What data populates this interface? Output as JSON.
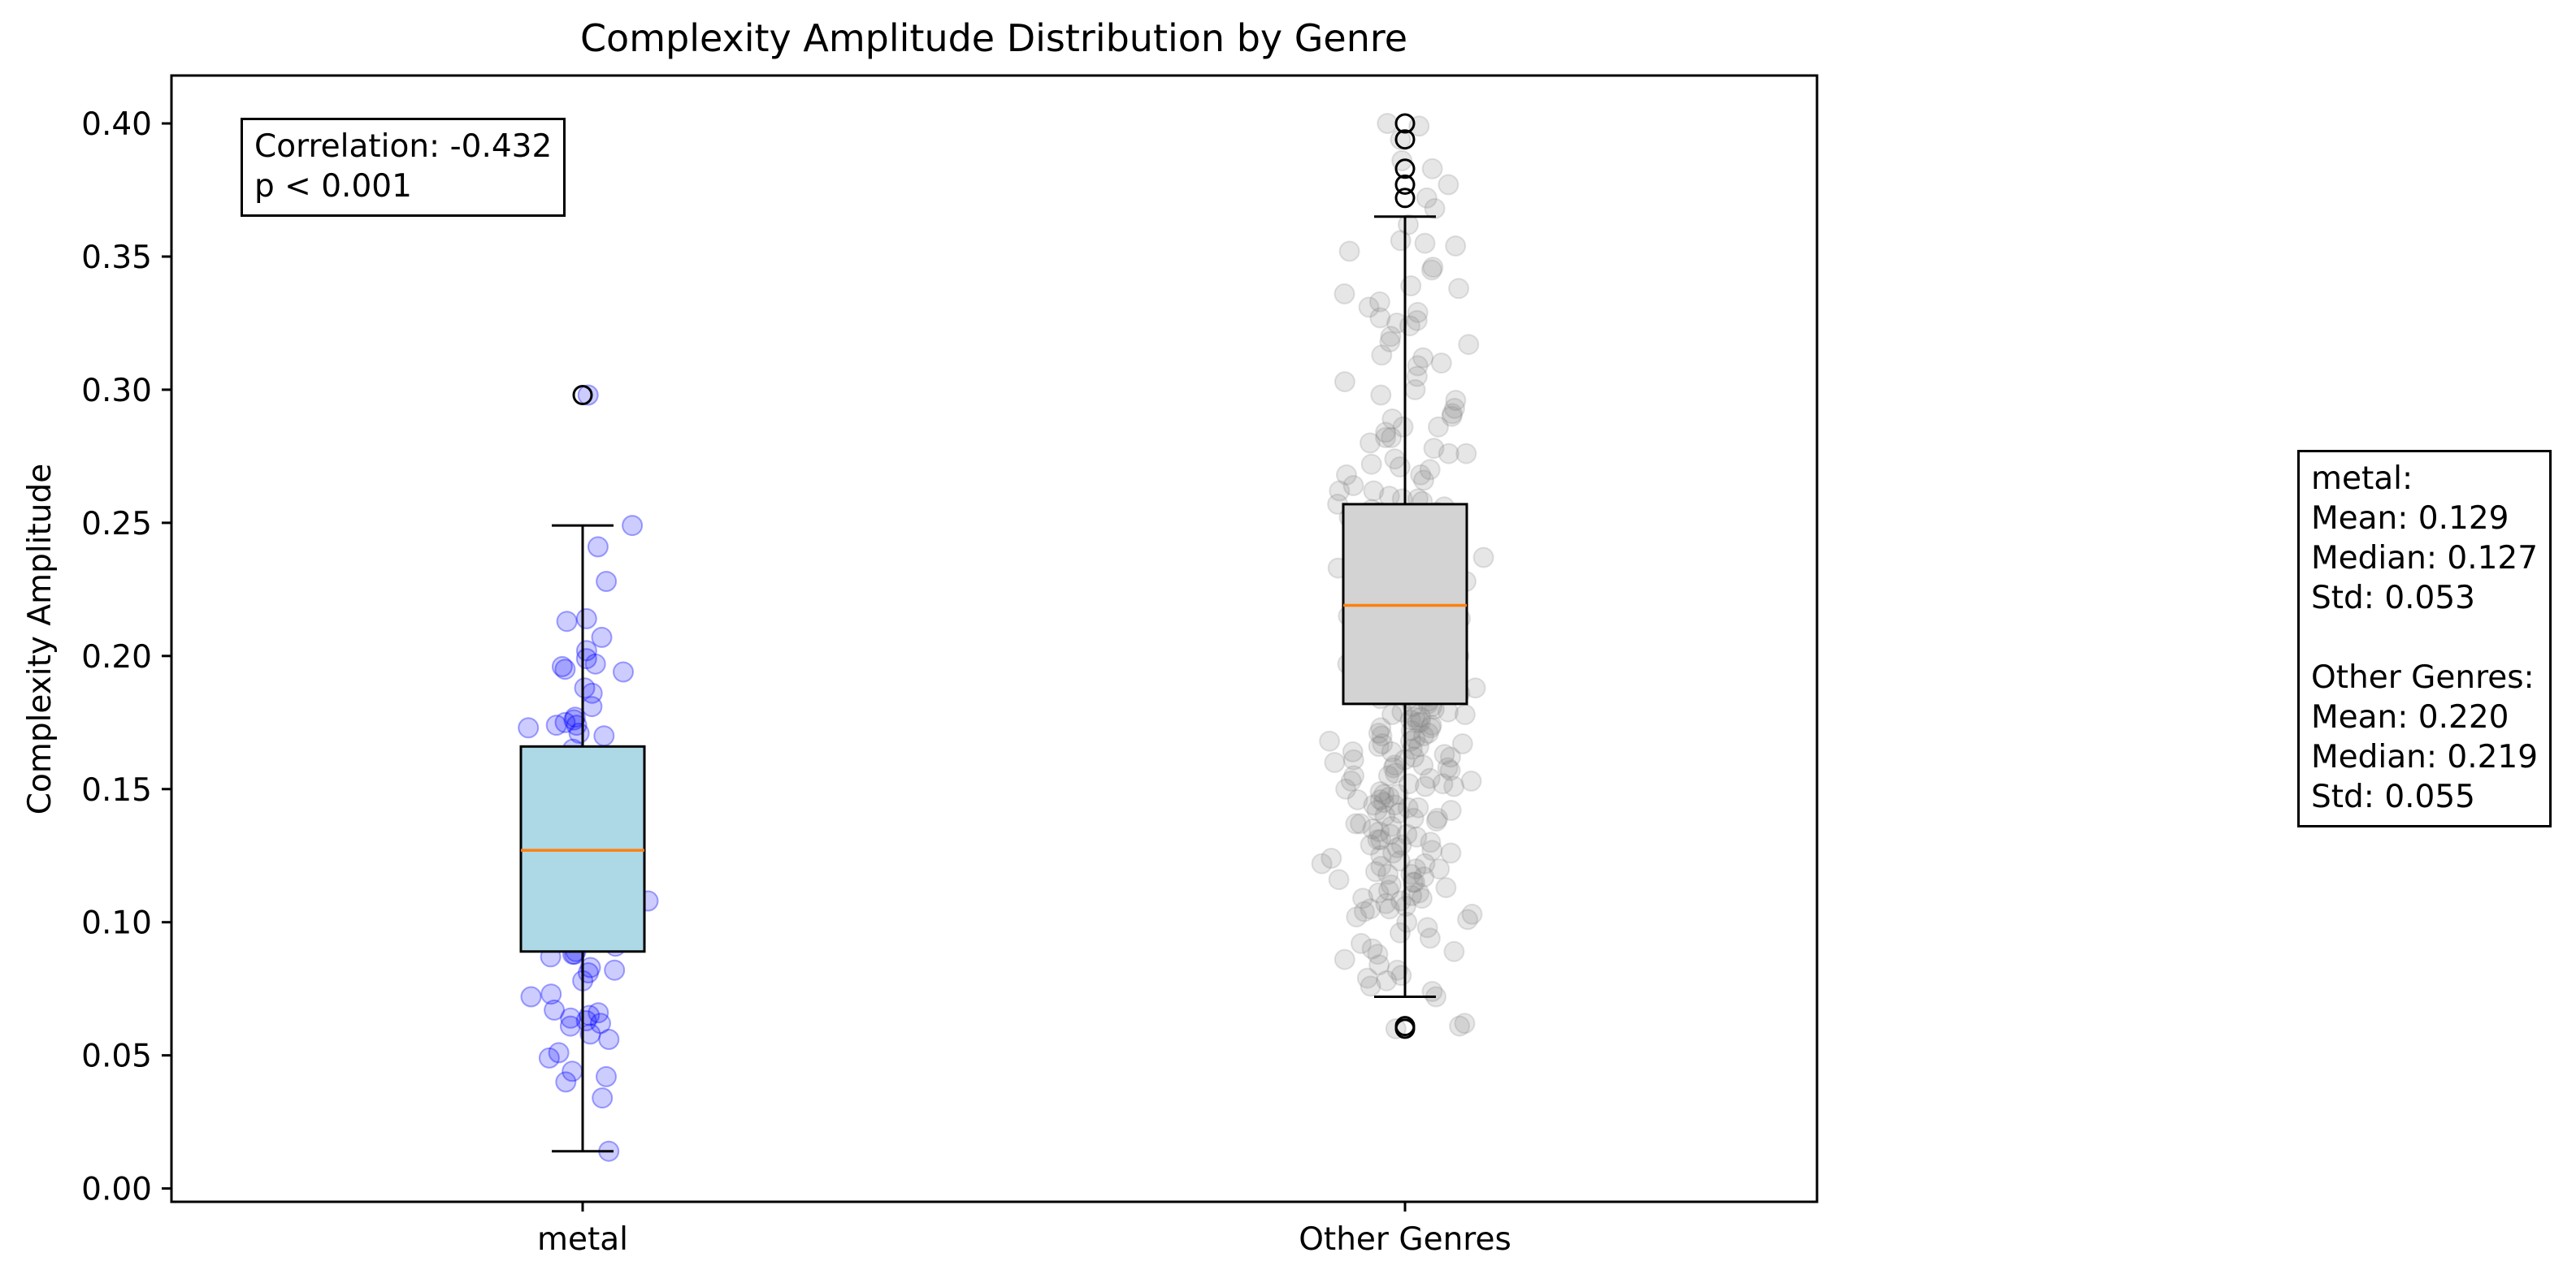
{
  "chart_data": {
    "type": "box",
    "title": "Complexity Amplitude Distribution by Genre",
    "xlabel": "",
    "ylabel": "Complexity Amplitude",
    "categories": [
      "metal",
      "Other Genres"
    ],
    "ylim": [
      -0.005,
      0.418
    ],
    "yticks": [
      "0.00",
      "0.05",
      "0.10",
      "0.15",
      "0.20",
      "0.25",
      "0.30",
      "0.35",
      "0.40"
    ],
    "grid": false,
    "boxes": [
      {
        "category": "metal",
        "q1": 0.089,
        "median": 0.127,
        "q3": 0.166,
        "whisker_low": 0.014,
        "whisker_high": 0.249,
        "outliers": [
          0.298
        ],
        "box_color": "#add8e6",
        "point_color": "#0000ff",
        "points": [
          0.298,
          0.249,
          0.241,
          0.228,
          0.214,
          0.213,
          0.207,
          0.202,
          0.199,
          0.197,
          0.196,
          0.195,
          0.194,
          0.188,
          0.186,
          0.181,
          0.177,
          0.176,
          0.175,
          0.174,
          0.174,
          0.173,
          0.171,
          0.17,
          0.165,
          0.162,
          0.158,
          0.15,
          0.145,
          0.141,
          0.137,
          0.131,
          0.128,
          0.127,
          0.124,
          0.121,
          0.118,
          0.115,
          0.112,
          0.108,
          0.104,
          0.1,
          0.096,
          0.091,
          0.089,
          0.088,
          0.088,
          0.087,
          0.083,
          0.082,
          0.081,
          0.078,
          0.073,
          0.072,
          0.067,
          0.066,
          0.065,
          0.064,
          0.063,
          0.062,
          0.061,
          0.058,
          0.056,
          0.051,
          0.049,
          0.044,
          0.042,
          0.04,
          0.034,
          0.014
        ]
      },
      {
        "category": "Other Genres",
        "q1": 0.182,
        "median": 0.219,
        "q3": 0.257,
        "whisker_low": 0.072,
        "whisker_high": 0.365,
        "outliers": [
          0.4,
          0.394,
          0.383,
          0.377,
          0.372,
          0.061,
          0.06
        ],
        "box_color": "#d3d3d3",
        "point_color": "#808080",
        "points": [
          0.4,
          0.399,
          0.394,
          0.386,
          0.383,
          0.377,
          0.372,
          0.368,
          0.362,
          0.356,
          0.355,
          0.354,
          0.352,
          0.346,
          0.345,
          0.339,
          0.338,
          0.336,
          0.333,
          0.331,
          0.329,
          0.327,
          0.326,
          0.325,
          0.324,
          0.32,
          0.318,
          0.317,
          0.313,
          0.312,
          0.31,
          0.309,
          0.305,
          0.303,
          0.3,
          0.298,
          0.296,
          0.293,
          0.29,
          0.289,
          0.286,
          0.284,
          0.282,
          0.28,
          0.278,
          0.276,
          0.274,
          0.272,
          0.27,
          0.268,
          0.266,
          0.264,
          0.262,
          0.26,
          0.259,
          0.258,
          0.257,
          0.256,
          0.255,
          0.254,
          0.253,
          0.252,
          0.251,
          0.25,
          0.249,
          0.248,
          0.247,
          0.246,
          0.245,
          0.244,
          0.243,
          0.242,
          0.241,
          0.24,
          0.239,
          0.238,
          0.237,
          0.236,
          0.235,
          0.234,
          0.233,
          0.232,
          0.231,
          0.23,
          0.229,
          0.228,
          0.227,
          0.226,
          0.225,
          0.224,
          0.223,
          0.222,
          0.221,
          0.22,
          0.219,
          0.218,
          0.217,
          0.216,
          0.215,
          0.214,
          0.213,
          0.212,
          0.211,
          0.21,
          0.209,
          0.208,
          0.207,
          0.206,
          0.205,
          0.204,
          0.203,
          0.202,
          0.201,
          0.2,
          0.199,
          0.198,
          0.197,
          0.196,
          0.195,
          0.194,
          0.193,
          0.192,
          0.191,
          0.19,
          0.189,
          0.188,
          0.187,
          0.186,
          0.185,
          0.184,
          0.183,
          0.182,
          0.181,
          0.18,
          0.179,
          0.178,
          0.177,
          0.176,
          0.175,
          0.174,
          0.173,
          0.172,
          0.171,
          0.17,
          0.169,
          0.168,
          0.167,
          0.166,
          0.165,
          0.164,
          0.163,
          0.162,
          0.161,
          0.16,
          0.159,
          0.158,
          0.157,
          0.156,
          0.155,
          0.154,
          0.153,
          0.152,
          0.151,
          0.15,
          0.149,
          0.148,
          0.147,
          0.146,
          0.145,
          0.144,
          0.143,
          0.142,
          0.141,
          0.14,
          0.139,
          0.138,
          0.137,
          0.136,
          0.135,
          0.134,
          0.133,
          0.132,
          0.131,
          0.13,
          0.129,
          0.128,
          0.127,
          0.126,
          0.125,
          0.124,
          0.123,
          0.122,
          0.121,
          0.12,
          0.119,
          0.118,
          0.117,
          0.116,
          0.115,
          0.114,
          0.113,
          0.112,
          0.111,
          0.11,
          0.109,
          0.108,
          0.107,
          0.106,
          0.105,
          0.104,
          0.103,
          0.102,
          0.101,
          0.1,
          0.098,
          0.096,
          0.094,
          0.092,
          0.09,
          0.089,
          0.088,
          0.086,
          0.084,
          0.082,
          0.08,
          0.079,
          0.078,
          0.076,
          0.074,
          0.072,
          0.062,
          0.061,
          0.06,
          0.262,
          0.251,
          0.239,
          0.228,
          0.217,
          0.206,
          0.195,
          0.184,
          0.173,
          0.162,
          0.151,
          0.268,
          0.245,
          0.233,
          0.222,
          0.211,
          0.199,
          0.188,
          0.177,
          0.166,
          0.155,
          0.144,
          0.282,
          0.276,
          0.271,
          0.259,
          0.248,
          0.236,
          0.225,
          0.214,
          0.203,
          0.192,
          0.181,
          0.17,
          0.159,
          0.148,
          0.137,
          0.126,
          0.291,
          0.286,
          0.254,
          0.231,
          0.219,
          0.208,
          0.197,
          0.186,
          0.175,
          0.164,
          0.153,
          0.142,
          0.131,
          0.12,
          0.228,
          0.224,
          0.216,
          0.213,
          0.209,
          0.202,
          0.193,
          0.189,
          0.178,
          0.171,
          0.167,
          0.158,
          0.146,
          0.139,
          0.133,
          0.122,
          0.115,
          0.109,
          0.242,
          0.237,
          0.226,
          0.221,
          0.218,
          0.207,
          0.204,
          0.196,
          0.185,
          0.179,
          0.168,
          0.161,
          0.152,
          0.143,
          0.129,
          0.118,
          0.111,
          0.105
        ]
      }
    ]
  },
  "annotations": {
    "correlation": {
      "line1": "Correlation: -0.432",
      "line2": "p < 0.001"
    },
    "stats": {
      "metal_header": "metal:",
      "metal_mean": "Mean: 0.129",
      "metal_median": "Median: 0.127",
      "metal_std": "Std: 0.053",
      "other_header": "Other Genres:",
      "other_mean": "Mean: 0.220",
      "other_median": "Median: 0.219",
      "other_std": "Std: 0.055"
    }
  },
  "colors": {
    "median_line": "#ff7f0e",
    "axis": "#000000"
  }
}
